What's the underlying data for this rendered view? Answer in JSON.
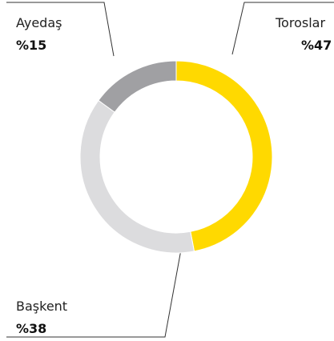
{
  "chart_data": {
    "type": "donut",
    "categories": [
      "Toroslar",
      "Başkent",
      "Ayedaş"
    ],
    "values": [
      47,
      38,
      15
    ],
    "value_labels": [
      "%47",
      "%38",
      "%15"
    ],
    "colors": [
      "#FFD900",
      "#DCDCDE",
      "#A0A0A3"
    ]
  }
}
